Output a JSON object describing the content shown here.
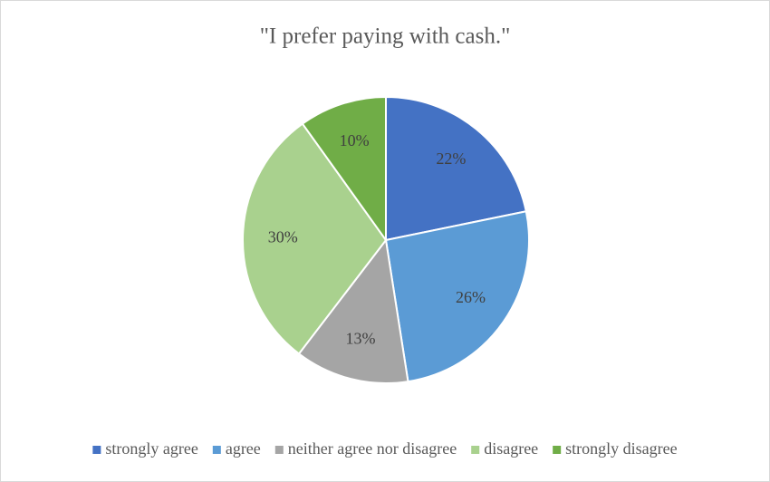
{
  "chart_data": {
    "type": "pie",
    "title": "\"I prefer paying with cash.\"",
    "categories": [
      "strongly agree",
      "agree",
      "neither agree nor disagree",
      "disagree",
      "strongly disagree"
    ],
    "values": [
      22,
      26,
      13,
      30,
      10
    ],
    "value_labels": [
      "22%",
      "26%",
      "13%",
      "30%",
      "10%"
    ],
    "colors": [
      "#4472c4",
      "#5b9bd5",
      "#a5a5a5",
      "#a9d18e",
      "#70ad47"
    ],
    "legend": "bottom"
  }
}
